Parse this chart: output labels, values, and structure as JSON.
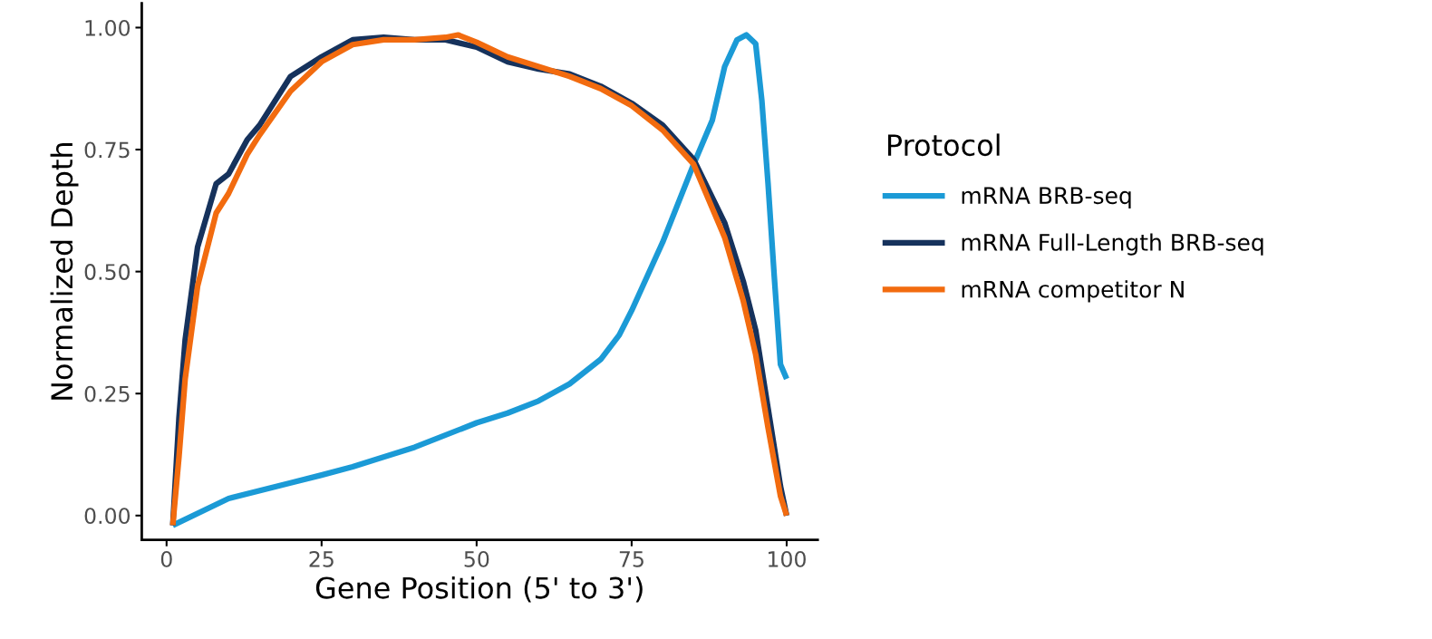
{
  "chart_data": {
    "type": "line",
    "xlabel": "Gene Position (5' to 3')",
    "ylabel": "Normalized Depth",
    "legend_title": "Protocol",
    "legend": "right",
    "grid": false,
    "marker": "none",
    "line_style": "solid",
    "xlim": [
      -4,
      105
    ],
    "xticks": [
      0,
      25,
      50,
      75,
      100
    ],
    "ylim": [
      -0.05,
      1.05
    ],
    "yticks": [
      {
        "value": 0,
        "label": "0.00"
      },
      {
        "value": 0.25,
        "label": "0.25"
      },
      {
        "value": 0.5,
        "label": "0.50"
      },
      {
        "value": 0.75,
        "label": "0.75"
      },
      {
        "value": 1,
        "label": "1.00"
      }
    ],
    "series": [
      {
        "name": "mRNA BRB-seq",
        "color": "#1b9ad6",
        "x": [
          1,
          10,
          20,
          25,
          30,
          40,
          50,
          55,
          60,
          65,
          70,
          73,
          75,
          80,
          85,
          88,
          90,
          92,
          93.5,
          95,
          96,
          97,
          98,
          99,
          100
        ],
        "values": [
          -0.02,
          0.035,
          0.067,
          0.083,
          0.1,
          0.14,
          0.19,
          0.21,
          0.235,
          0.27,
          0.32,
          0.37,
          0.42,
          0.56,
          0.72,
          0.81,
          0.92,
          0.975,
          0.985,
          0.967,
          0.85,
          0.68,
          0.49,
          0.31,
          0.28
        ]
      },
      {
        "name": "mRNA Full-Length BRB-seq",
        "color": "#16325c",
        "x": [
          1,
          2,
          3,
          5,
          8,
          10,
          13,
          15,
          20,
          25,
          30,
          35,
          40,
          45,
          50,
          55,
          60,
          65,
          70,
          75,
          80,
          85,
          90,
          93,
          95,
          97,
          99,
          100
        ],
        "values": [
          -0.02,
          0.2,
          0.36,
          0.55,
          0.68,
          0.7,
          0.77,
          0.8,
          0.9,
          0.94,
          0.975,
          0.98,
          0.975,
          0.975,
          0.96,
          0.93,
          0.915,
          0.905,
          0.88,
          0.845,
          0.8,
          0.73,
          0.6,
          0.48,
          0.38,
          0.22,
          0.06,
          0.0
        ]
      },
      {
        "name": "mRNA competitor N",
        "color": "#f26b0f",
        "x": [
          1,
          2,
          3,
          5,
          8,
          10,
          13,
          15,
          20,
          25,
          30,
          35,
          40,
          45,
          47,
          50,
          55,
          60,
          65,
          70,
          75,
          80,
          85,
          90,
          93,
          95,
          97,
          99,
          100
        ],
        "values": [
          -0.02,
          0.12,
          0.28,
          0.47,
          0.62,
          0.66,
          0.74,
          0.78,
          0.87,
          0.93,
          0.965,
          0.975,
          0.975,
          0.98,
          0.985,
          0.97,
          0.94,
          0.92,
          0.9,
          0.875,
          0.84,
          0.79,
          0.72,
          0.57,
          0.44,
          0.33,
          0.18,
          0.04,
          0.0
        ]
      }
    ]
  }
}
